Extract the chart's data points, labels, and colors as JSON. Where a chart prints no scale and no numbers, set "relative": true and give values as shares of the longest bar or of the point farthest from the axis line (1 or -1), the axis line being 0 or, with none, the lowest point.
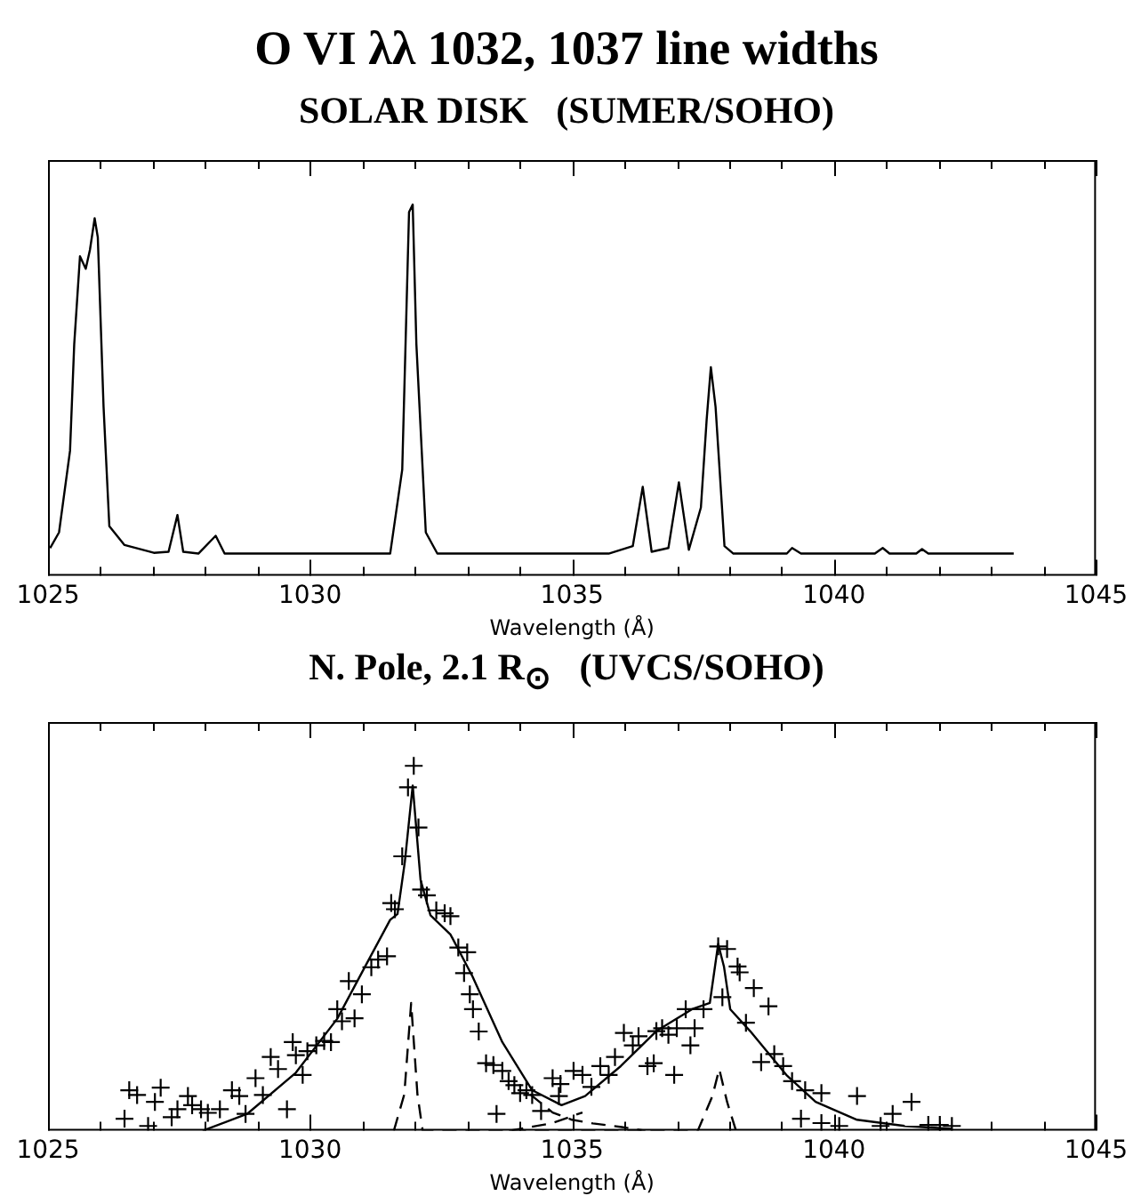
{
  "chart_data": [
    {
      "type": "line",
      "title": "O VI λλ 1032, 1037 line widths",
      "subtitle": "SOLAR DISK   (SUMER/SOHO)",
      "xlabel": "Wavelength (Å)",
      "relative": true,
      "marker": "none",
      "line_style": "solid",
      "color": "#000000",
      "x": [
        1025.04,
        1025.21,
        1025.42,
        1025.5,
        1025.61,
        1025.72,
        1025.8,
        1025.89,
        1025.95,
        1026.06,
        1026.17,
        1026.46,
        1027.02,
        1027.3,
        1027.47,
        1027.58,
        1027.87,
        1028.2,
        1028.37,
        1031.53,
        1031.76,
        1031.89,
        1031.96,
        1032.03,
        1032.21,
        1032.43,
        1035.7,
        1036.16,
        1036.35,
        1036.52,
        1036.84,
        1037.04,
        1037.23,
        1037.46,
        1037.57,
        1037.65,
        1037.74,
        1037.91,
        1038.08,
        1039.1,
        1039.2,
        1039.37,
        1040.78,
        1040.93,
        1041.06,
        1041.57,
        1041.68,
        1041.8,
        1043.43
      ],
      "values": [
        0.075,
        0.117,
        0.337,
        0.624,
        0.861,
        0.827,
        0.878,
        0.963,
        0.912,
        0.455,
        0.134,
        0.083,
        0.062,
        0.065,
        0.164,
        0.065,
        0.06,
        0.108,
        0.06,
        0.06,
        0.286,
        0.98,
        1,
        0.624,
        0.117,
        0.06,
        0.06,
        0.08,
        0.24,
        0.065,
        0.075,
        0.252,
        0.07,
        0.184,
        0.421,
        0.562,
        0.455,
        0.08,
        0.06,
        0.06,
        0.075,
        0.06,
        0.06,
        0.075,
        0.06,
        0.06,
        0.072,
        0.06,
        0.06
      ],
      "xlim": [
        1025,
        1045
      ],
      "xticks": [
        1025,
        {
          "value": 1026,
          "label": null
        },
        {
          "value": 1027,
          "label": null
        },
        {
          "value": 1028,
          "label": null
        },
        {
          "value": 1029,
          "label": null
        },
        1030,
        {
          "value": 1031,
          "label": null
        },
        {
          "value": 1032,
          "label": null
        },
        {
          "value": 1033,
          "label": null
        },
        {
          "value": 1034,
          "label": null
        },
        1035,
        {
          "value": 1036,
          "label": null
        },
        {
          "value": 1037,
          "label": null
        },
        {
          "value": 1038,
          "label": null
        },
        {
          "value": 1039,
          "label": null
        },
        1040,
        {
          "value": 1041,
          "label": null
        },
        {
          "value": 1042,
          "label": null
        },
        {
          "value": 1043,
          "label": null
        },
        {
          "value": 1044,
          "label": null
        },
        1045
      ]
    },
    {
      "type": "line",
      "title": "N. Pole, 2.1 R$_{⊙}$   (UVCS/SOHO)",
      "xlabel": "Wavelength (Å)",
      "relative": true,
      "xlim": [
        1025,
        1045
      ],
      "xticks": [
        1025,
        {
          "value": 1026,
          "label": null
        },
        {
          "value": 1027,
          "label": null
        },
        {
          "value": 1028,
          "label": null
        },
        {
          "value": 1029,
          "label": null
        },
        1030,
        {
          "value": 1031,
          "label": null
        },
        {
          "value": 1032,
          "label": null
        },
        {
          "value": 1033,
          "label": null
        },
        {
          "value": 1034,
          "label": null
        },
        1035,
        {
          "value": 1036,
          "label": null
        },
        {
          "value": 1037,
          "label": null
        },
        {
          "value": 1038,
          "label": null
        },
        {
          "value": 1039,
          "label": null
        },
        1040,
        {
          "value": 1041,
          "label": null
        },
        {
          "value": 1042,
          "label": null
        },
        {
          "value": 1043,
          "label": null
        },
        {
          "value": 1044,
          "label": null
        },
        1045
      ],
      "series": [
        {
          "type": "scatter",
          "marker": "cross",
          "color": "#000000",
          "x": [
            1026.46,
            1026.55,
            1026.7,
            1026.91,
            1027.04,
            1027.15,
            1027.36,
            1027.47,
            1027.67,
            1027.75,
            1027.92,
            1028.05,
            1028.28,
            1028.51,
            1028.65,
            1028.77,
            1028.96,
            1029.1,
            1029.25,
            1029.39,
            1029.56,
            1029.67,
            1029.73,
            1029.86,
            1029.95,
            1030.12,
            1030.27,
            1030.4,
            1030.52,
            1030.61,
            1030.74,
            1030.85,
            1030.99,
            1031.17,
            1031.3,
            1031.47,
            1031.55,
            1031.62,
            1031.76,
            1031.87,
            1031.98,
            1032.07,
            1032.12,
            1032.23,
            1032.41,
            1032.57,
            1032.68,
            1032.83,
            1033.0,
            1032.94,
            1033.05,
            1033.11,
            1033.22,
            1033.36,
            1033.5,
            1033.67,
            1033.79,
            1033.9,
            1034.01,
            1034.13,
            1034.24,
            1034.41,
            1033.56,
            1034.63,
            1034.78,
            1035.03,
            1035.2,
            1034.75,
            1035.37,
            1035.54,
            1035.7,
            1035.82,
            1035.99,
            1036.16,
            1036.27,
            1036.44,
            1036.56,
            1036.61,
            1036.72,
            1036.84,
            1036.95,
            1037.0,
            1037.17,
            1037.26,
            1037.34,
            1037.51,
            1037.79,
            1037.96,
            1037.87,
            1038.16,
            1038.2,
            1038.47,
            1038.75,
            1038.32,
            1038.61,
            1038.86,
            1039.03,
            1039.2,
            1039.45,
            1039.76,
            1039.37,
            1039.76,
            1040.1,
            1040.44,
            1040.89,
            1041.12,
            1041.48,
            1041.8,
            1042.02,
            1042.25
          ],
          "values": [
            0.033,
            0.111,
            0.098,
            0.013,
            0.079,
            0.118,
            0.037,
            0.059,
            0.095,
            0.07,
            0.059,
            0.049,
            0.059,
            0.111,
            0.095,
            0.046,
            0.144,
            0.098,
            0.202,
            0.169,
            0.059,
            0.243,
            0.207,
            0.153,
            0.218,
            0.234,
            0.246,
            0.243,
            0.333,
            0.3,
            0.41,
            0.308,
            0.374,
            0.448,
            0.469,
            0.478,
            0.624,
            0.607,
            0.752,
            0.941,
            1,
            0.831,
            0.661,
            0.645,
            0.604,
            0.596,
            0.588,
            0.502,
            0.489,
            0.432,
            0.374,
            0.333,
            0.272,
            0.185,
            0.18,
            0.164,
            0.136,
            0.125,
            0.103,
            0.111,
            0.098,
            0.054,
            0.046,
            0.144,
            0.128,
            0.164,
            0.153,
            0.095,
            0.12,
            0.177,
            0.153,
            0.202,
            0.268,
            0.234,
            0.259,
            0.177,
            0.185,
            0.273,
            0.281,
            0.263,
            0.153,
            0.281,
            0.333,
            0.234,
            0.281,
            0.333,
            0.505,
            0.498,
            0.366,
            0.45,
            0.434,
            0.391,
            0.341,
            0.296,
            0.188,
            0.21,
            0.177,
            0.136,
            0.111,
            0.103,
            0.033,
            0.021,
            0.013,
            0.095,
            0.013,
            0.046,
            0.079,
            0.016,
            0.016,
            0.013
          ]
        },
        {
          "type": "line",
          "marker": "none",
          "line_style": "solid",
          "color": "#000000",
          "x": [
            1027.95,
            1028.8,
            1029.73,
            1030.52,
            1031.1,
            1031.53,
            1031.67,
            1031.81,
            1031.96,
            1032.11,
            1032.3,
            1032.68,
            1033.1,
            1033.67,
            1034.24,
            1034.8,
            1035.25,
            1035.93,
            1036.61,
            1037.29,
            1037.63,
            1037.79,
            1037.9,
            1038.02,
            1038.4,
            1039.09,
            1039.65,
            1040.44,
            1041.35,
            1042.25
          ],
          "values": [
            0,
            0.046,
            0.159,
            0.307,
            0.463,
            0.578,
            0.594,
            0.737,
            0.946,
            0.687,
            0.59,
            0.538,
            0.423,
            0.243,
            0.111,
            0.07,
            0.095,
            0.177,
            0.273,
            0.333,
            0.35,
            0.512,
            0.45,
            0.333,
            0.273,
            0.153,
            0.079,
            0.03,
            0.013,
            0.005
          ]
        },
        {
          "type": "line",
          "marker": "none",
          "line_style": "dashed",
          "color": "#000000",
          "x": [
            1031.6,
            1031.8,
            1031.93,
            1032.05,
            1032.15,
            1037.4,
            1037.68,
            1037.81,
            1037.96,
            1038.13
          ],
          "values": [
            0,
            0.1,
            0.35,
            0.1,
            0,
            0,
            0.095,
            0.169,
            0.079,
            0
          ]
        },
        {
          "type": "line",
          "marker": "none",
          "line_style": "dashed",
          "color": "#000000",
          "x": [
            1034.2,
            1034.63,
            1035.0,
            1035.4,
            1035.95,
            1036.4
          ],
          "values": [
            0.1,
            0.05,
            0.03,
            0.02,
            0.01,
            0
          ]
        },
        {
          "type": "line",
          "marker": "none",
          "line_style": "dashed",
          "color": "#000000",
          "x": [
            1033.8,
            1034.2,
            1034.6,
            1035.2
          ],
          "values": [
            0,
            0.01,
            0.02,
            0.05
          ]
        }
      ]
    }
  ]
}
